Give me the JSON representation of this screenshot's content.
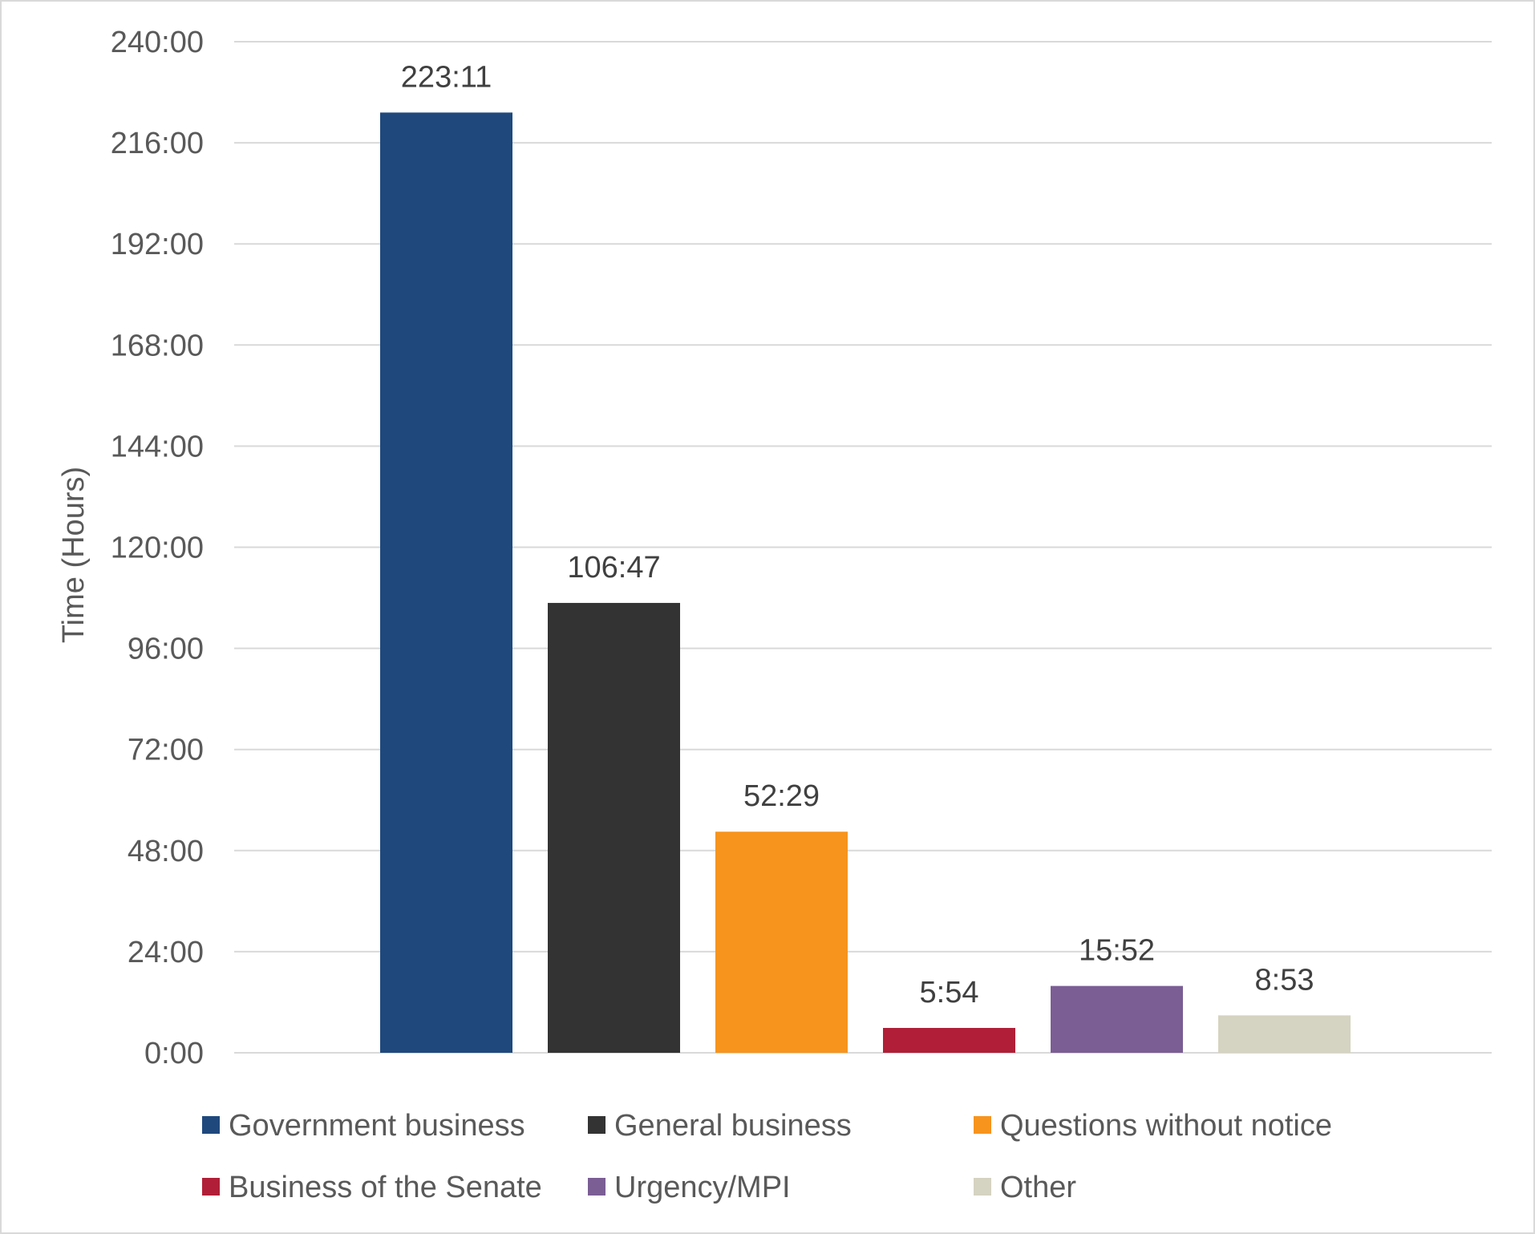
{
  "chart_data": {
    "type": "bar",
    "title": "",
    "xlabel": "",
    "ylabel": "Time (Hours)",
    "ylim": [
      0,
      240
    ],
    "y_tick_values": [
      0,
      24,
      48,
      72,
      96,
      120,
      144,
      168,
      192,
      216,
      240
    ],
    "y_tick_labels": [
      "0:00",
      "24:00",
      "48:00",
      "72:00",
      "96:00",
      "120:00",
      "144:00",
      "168:00",
      "192:00",
      "216:00",
      "240:00"
    ],
    "grid": true,
    "legend_position": "bottom",
    "series": [
      {
        "name": "Government business",
        "value": 223.1833,
        "label": "223:11",
        "color": "#1F497D"
      },
      {
        "name": "General business",
        "value": 106.7833,
        "label": "106:47",
        "color": "#333333"
      },
      {
        "name": "Questions without notice",
        "value": 52.4833,
        "label": "52:29",
        "color": "#F7941D"
      },
      {
        "name": "Business of the Senate",
        "value": 5.9,
        "label": "5:54",
        "color": "#B01F37"
      },
      {
        "name": "Urgency/MPI",
        "value": 15.8667,
        "label": "15:52",
        "color": "#7B5E94"
      },
      {
        "name": "Other",
        "value": 8.8833,
        "label": "8:53",
        "color": "#D5D3C1"
      }
    ]
  }
}
